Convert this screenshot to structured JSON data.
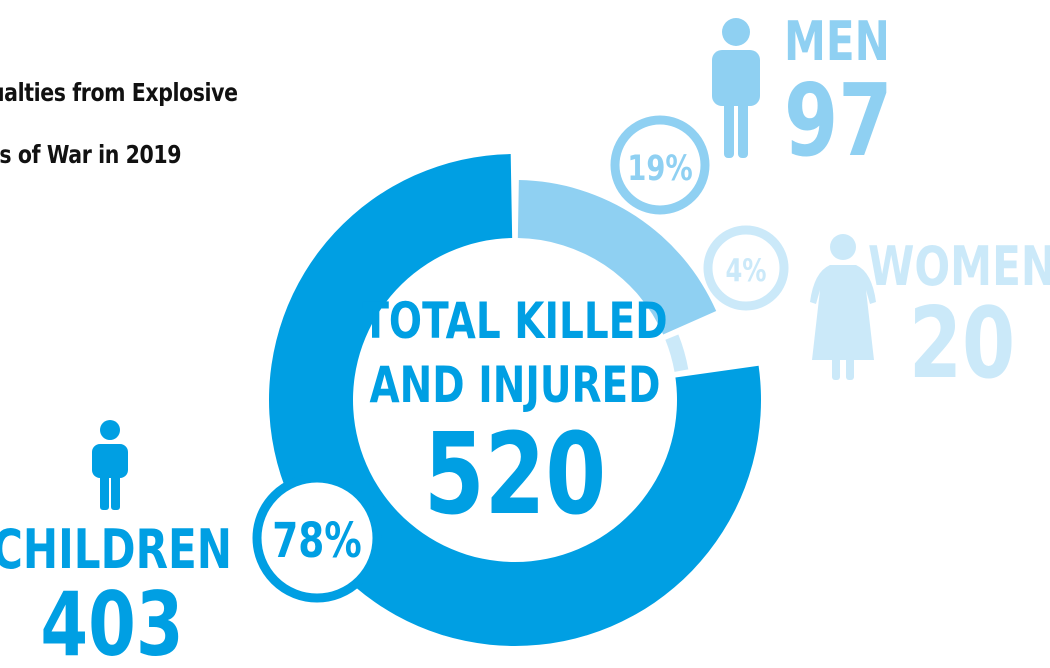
{
  "title_lines": [
    "ualties from Explosive",
    "ts of War in 2019"
  ],
  "colors": {
    "children": "#009fe3",
    "men": "#8fd0f2",
    "women": "#cbe9f9",
    "background": "#ffffff",
    "title": "#111111"
  },
  "icons": {
    "children": "child-figure-icon",
    "men": "man-figure-icon",
    "women": "woman-figure-icon"
  },
  "center": {
    "line1": "TOTAL KILLED",
    "line2": "AND INJURED",
    "total": "520"
  },
  "chart_data": {
    "type": "pie",
    "variant": "donut",
    "title": "ualties from Explosive ts of War in 2019",
    "total": 520,
    "series": [
      {
        "name": "CHILDREN",
        "value": 403,
        "percent_label": "78%",
        "color": "#009fe3",
        "icon": "child-figure-icon"
      },
      {
        "name": "MEN",
        "value": 97,
        "percent_label": "19%",
        "color": "#8fd0f2",
        "icon": "man-figure-icon"
      },
      {
        "name": "WOMEN",
        "value": 20,
        "percent_label": "4%",
        "color": "#cbe9f9",
        "icon": "woman-figure-icon"
      }
    ]
  }
}
